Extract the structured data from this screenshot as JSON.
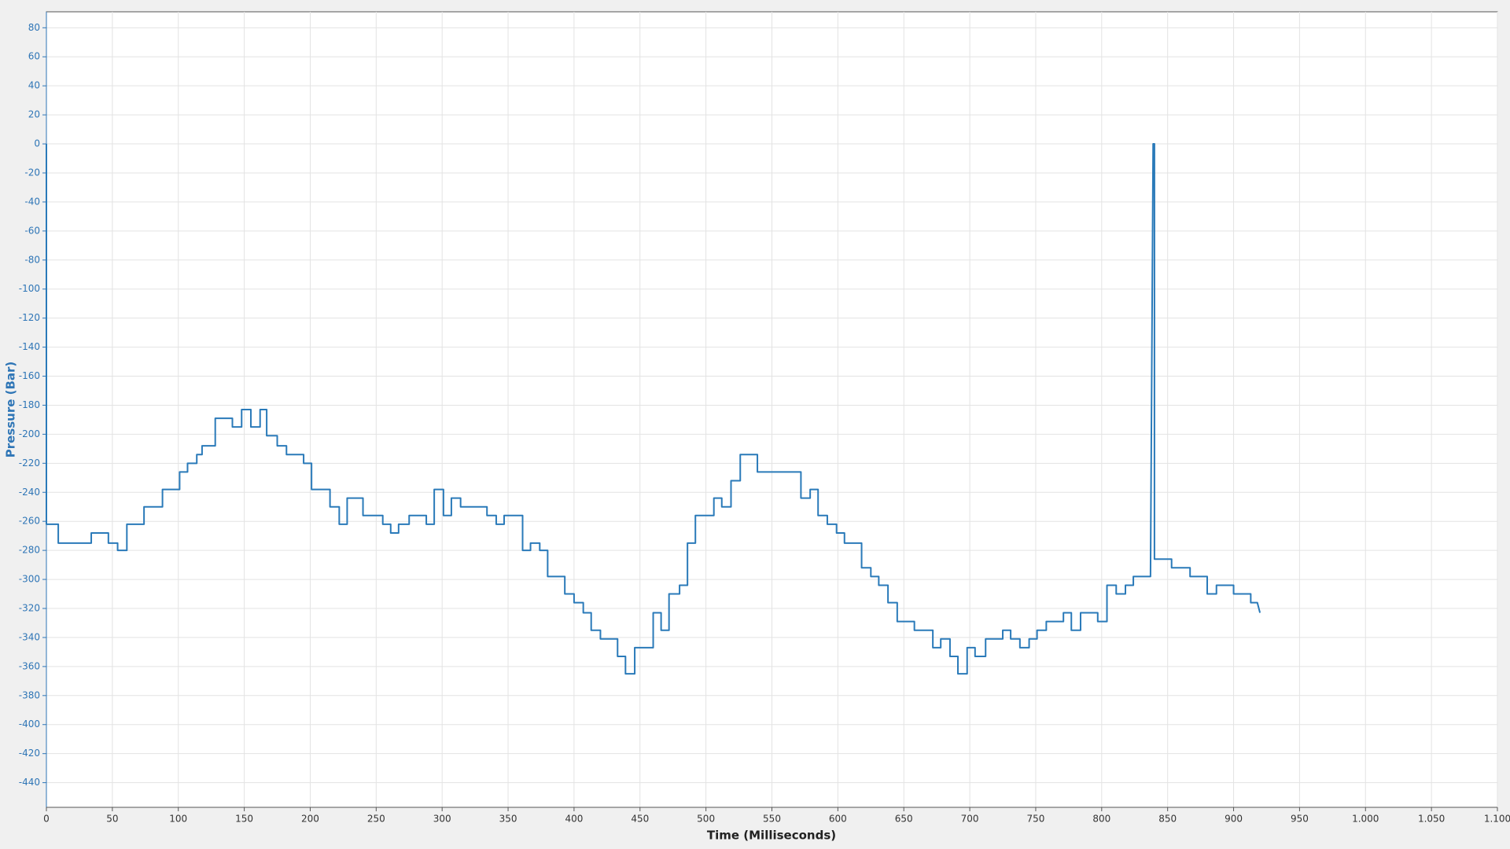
{
  "chart_data": {
    "type": "line",
    "x_label": "Time (Milliseconds)",
    "y_label": "Pressure (Bar)",
    "color": "#2a7ab9",
    "grid": true,
    "xlim": [
      0,
      1100
    ],
    "ylim": [
      -457,
      91
    ],
    "xticks": [
      0,
      50,
      100,
      150,
      200,
      250,
      300,
      350,
      400,
      450,
      500,
      550,
      600,
      650,
      700,
      750,
      800,
      850,
      900,
      950,
      {
        "value": 1000,
        "label": "1.000"
      },
      {
        "value": 1050,
        "label": "1.050"
      },
      {
        "value": 1100,
        "label": "1.100"
      }
    ],
    "yticks": [
      80,
      60,
      40,
      20,
      0,
      -20,
      -40,
      -60,
      -80,
      -100,
      -120,
      -140,
      -160,
      -180,
      -200,
      -220,
      -240,
      -260,
      -280,
      -300,
      -320,
      -340,
      -360,
      -380,
      -400,
      -420,
      -440
    ],
    "x": [
      0,
      0,
      9,
      9,
      34,
      34,
      47,
      47,
      54,
      54,
      61,
      61,
      74,
      74,
      88,
      88,
      101,
      101,
      107,
      107,
      114,
      114,
      118,
      118,
      128,
      128,
      141,
      141,
      148,
      148,
      155,
      155,
      162,
      162,
      167,
      167,
      175,
      175,
      182,
      182,
      195,
      195,
      201,
      201,
      215,
      215,
      222,
      222,
      228,
      228,
      240,
      240,
      255,
      255,
      261,
      261,
      267,
      267,
      275,
      275,
      288,
      288,
      294,
      294,
      301,
      301,
      307,
      307,
      314,
      314,
      334,
      334,
      341,
      341,
      347,
      347,
      361,
      361,
      367,
      367,
      374,
      374,
      380,
      380,
      393,
      393,
      400,
      400,
      407,
      407,
      413,
      413,
      420,
      420,
      433,
      433,
      439,
      439,
      446,
      446,
      460,
      460,
      466,
      466,
      472,
      472,
      480,
      480,
      486,
      486,
      492,
      492,
      506,
      506,
      512,
      512,
      519,
      519,
      526,
      526,
      539,
      539,
      572,
      572,
      579,
      579,
      585,
      585,
      592,
      592,
      599,
      599,
      605,
      605,
      618,
      618,
      625,
      625,
      631,
      631,
      638,
      638,
      645,
      645,
      658,
      658,
      672,
      672,
      678,
      678,
      685,
      685,
      691,
      691,
      698,
      698,
      704,
      704,
      712,
      712,
      725,
      725,
      731,
      731,
      738,
      738,
      745,
      745,
      751,
      751,
      758,
      758,
      771,
      771,
      777,
      777,
      784,
      784,
      797,
      797,
      804,
      804,
      811,
      811,
      818,
      818,
      824,
      824,
      837,
      839,
      840,
      840,
      853,
      853,
      867,
      867,
      880,
      880,
      887,
      887,
      900,
      900,
      913,
      913,
      918,
      920
    ],
    "values": [
      0,
      -262,
      -262,
      -275,
      -275,
      -268,
      -268,
      -275,
      -275,
      -280,
      -280,
      -262,
      -262,
      -250,
      -250,
      -238,
      -238,
      -226,
      -226,
      -220,
      -220,
      -214,
      -214,
      -208,
      -208,
      -189,
      -189,
      -195,
      -195,
      -183,
      -183,
      -195,
      -195,
      -183,
      -183,
      -201,
      -201,
      -208,
      -208,
      -214,
      -214,
      -220,
      -220,
      -238,
      -238,
      -250,
      -250,
      -262,
      -262,
      -244,
      -244,
      -256,
      -256,
      -262,
      -262,
      -268,
      -268,
      -262,
      -262,
      -256,
      -256,
      -262,
      -262,
      -238,
      -238,
      -256,
      -256,
      -244,
      -244,
      -250,
      -250,
      -256,
      -256,
      -262,
      -262,
      -256,
      -256,
      -280,
      -280,
      -275,
      -275,
      -280,
      -280,
      -298,
      -298,
      -310,
      -310,
      -316,
      -316,
      -323,
      -323,
      -335,
      -335,
      -341,
      -341,
      -353,
      -353,
      -365,
      -365,
      -347,
      -347,
      -323,
      -323,
      -335,
      -335,
      -310,
      -310,
      -304,
      -304,
      -275,
      -275,
      -256,
      -256,
      -244,
      -244,
      -250,
      -250,
      -232,
      -232,
      -214,
      -214,
      -226,
      -226,
      -244,
      -244,
      -238,
      -238,
      -256,
      -256,
      -262,
      -262,
      -268,
      -268,
      -275,
      -275,
      -292,
      -292,
      -298,
      -298,
      -304,
      -304,
      -316,
      -316,
      -329,
      -329,
      -335,
      -335,
      -347,
      -347,
      -341,
      -341,
      -353,
      -353,
      -365,
      -365,
      -347,
      -347,
      -353,
      -353,
      -341,
      -341,
      -335,
      -335,
      -341,
      -341,
      -347,
      -347,
      -341,
      -341,
      -335,
      -335,
      -329,
      -329,
      -323,
      -323,
      -335,
      -335,
      -323,
      -323,
      -329,
      -329,
      -304,
      -304,
      -310,
      -310,
      -304,
      -304,
      -298,
      -298,
      0,
      0,
      -286,
      -286,
      -292,
      -292,
      -298,
      -298,
      -310,
      -310,
      -304,
      -304,
      -310,
      -310,
      -316,
      -316,
      -323
    ]
  }
}
